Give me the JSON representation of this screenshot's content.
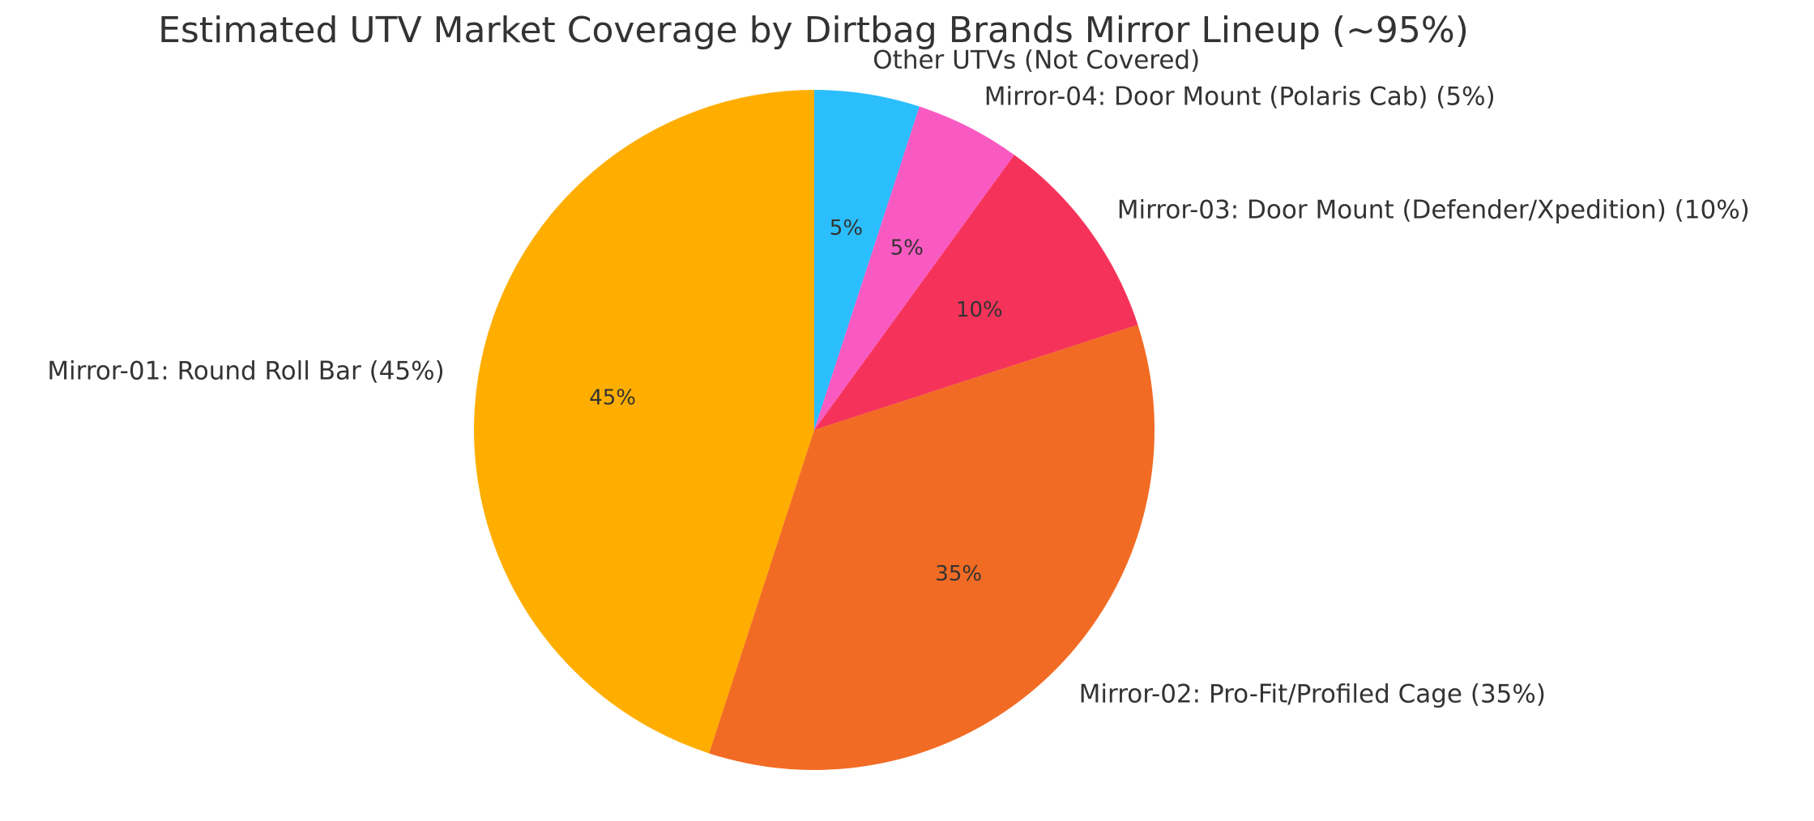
{
  "chart_data": {
    "type": "pie",
    "title": "Estimated UTV Market Coverage by Dirtbag Brands Mirror Lineup (~95%)",
    "start_angle_deg": 90,
    "direction": "counterclockwise",
    "slices": [
      {
        "label": "Mirror-01: Round Roll Bar (45%)",
        "value": 45,
        "pct_text": "45%",
        "color": "#FFAE00"
      },
      {
        "label": "Mirror-02: Pro-Fit/Profiled Cage (35%)",
        "value": 35,
        "pct_text": "35%",
        "color": "#F26B24"
      },
      {
        "label": "Mirror-03: Door Mount (Defender/Xpedition) (10%)",
        "value": 10,
        "pct_text": "10%",
        "color": "#F5335A"
      },
      {
        "label": "Mirror-04: Door Mount (Polaris Cab) (5%)",
        "value": 5,
        "pct_text": "5%",
        "color": "#F95AC2"
      },
      {
        "label": "Other UTVs (Not Covered)",
        "value": 5,
        "pct_text": "5%",
        "color": "#2BBEFD"
      }
    ]
  }
}
